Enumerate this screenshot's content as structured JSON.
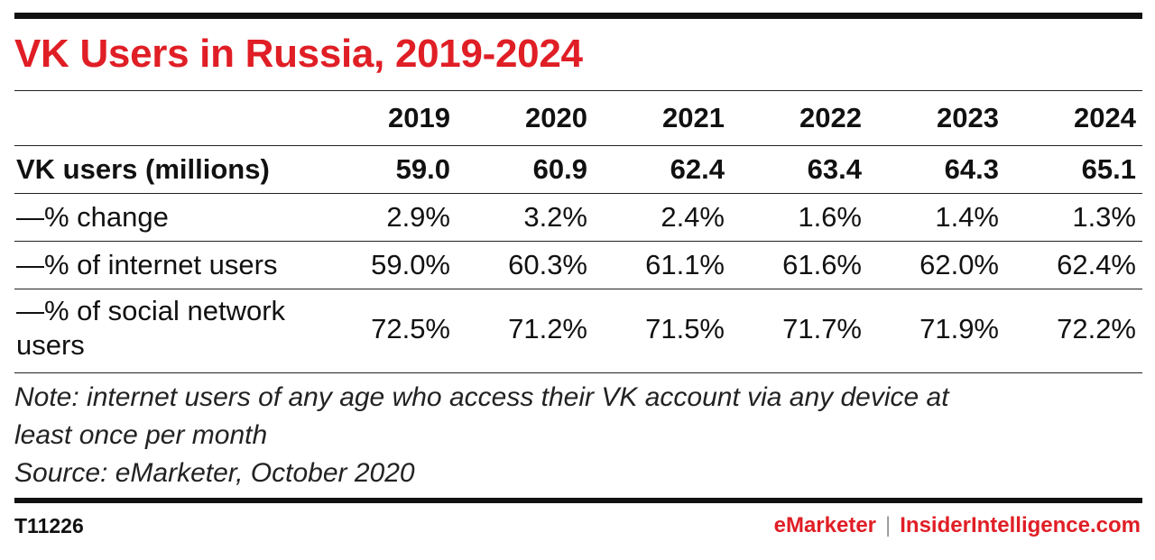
{
  "title": "VK Users in Russia, 2019-2024",
  "colors": {
    "title": "#e01e25",
    "brand_emarketer": "#e01e25",
    "brand_insider": "#e01e25",
    "rules": "#111111"
  },
  "chart_data": {
    "type": "table",
    "title": "VK Users in Russia, 2019-2024",
    "columns": [
      "2019",
      "2020",
      "2021",
      "2022",
      "2023",
      "2024"
    ],
    "rows": [
      {
        "label": "VK users (millions)",
        "values": [
          "59.0",
          "60.9",
          "62.4",
          "63.4",
          "64.3",
          "65.1"
        ]
      },
      {
        "label": "—% change",
        "values": [
          "2.9%",
          "3.2%",
          "2.4%",
          "1.6%",
          "1.4%",
          "1.3%"
        ]
      },
      {
        "label": "—% of internet users",
        "values": [
          "59.0%",
          "60.3%",
          "61.1%",
          "61.6%",
          "62.0%",
          "62.4%"
        ]
      },
      {
        "label": "—% of social network users",
        "values": [
          "72.5%",
          "71.2%",
          "71.5%",
          "71.7%",
          "71.9%",
          "72.2%"
        ]
      }
    ]
  },
  "note_line1": "Note: internet users of any age who access their VK account via any device at",
  "note_line2": "least once per month",
  "source": "Source: eMarketer, October 2020",
  "footer": {
    "id": "T11226",
    "brand_left": "eMarketer",
    "separator": "|",
    "brand_right": "InsiderIntelligence.com"
  }
}
